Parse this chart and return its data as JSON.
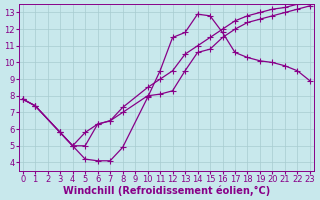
{
  "xlabel": "Windchill (Refroidissement éolien,°C)",
  "bg_color": "#c8e8ec",
  "grid_color": "#a8ccd0",
  "line_color": "#880088",
  "xlim_min": -0.3,
  "xlim_max": 23.3,
  "ylim_min": 3.5,
  "ylim_max": 13.5,
  "xticks": [
    0,
    1,
    2,
    3,
    4,
    5,
    6,
    7,
    8,
    9,
    10,
    11,
    12,
    13,
    14,
    15,
    16,
    17,
    18,
    19,
    20,
    21,
    22,
    23
  ],
  "yticks": [
    4,
    5,
    6,
    7,
    8,
    9,
    10,
    11,
    12,
    13
  ],
  "curve1_x": [
    0,
    1,
    3,
    4,
    5,
    6,
    7,
    8,
    10,
    11,
    12,
    13,
    14,
    15,
    16,
    17,
    18,
    19,
    20,
    21,
    22,
    23
  ],
  "curve1_y": [
    7.8,
    7.4,
    5.8,
    5.0,
    4.2,
    4.1,
    4.1,
    4.9,
    7.9,
    9.5,
    11.5,
    11.8,
    12.9,
    12.8,
    11.8,
    10.6,
    10.3,
    10.1,
    10.0,
    9.8,
    9.5,
    8.9
  ],
  "curve2_x": [
    0,
    1,
    3,
    4,
    5,
    6,
    7,
    8,
    10,
    11,
    12,
    13,
    14,
    15,
    16,
    17,
    18,
    19,
    20,
    21,
    22,
    23
  ],
  "curve2_y": [
    7.8,
    7.4,
    5.8,
    5.0,
    5.8,
    6.3,
    6.5,
    7.0,
    8.0,
    8.1,
    8.3,
    9.5,
    10.6,
    10.8,
    11.5,
    12.0,
    12.4,
    12.6,
    12.8,
    13.0,
    13.2,
    13.4
  ],
  "curve3_x": [
    0,
    1,
    3,
    4,
    5,
    6,
    7,
    8,
    10,
    11,
    12,
    13,
    14,
    15,
    16,
    17,
    18,
    19,
    20,
    21,
    22,
    23
  ],
  "curve3_y": [
    7.8,
    7.4,
    5.8,
    5.0,
    5.0,
    6.3,
    6.5,
    7.3,
    8.5,
    9.0,
    9.5,
    10.5,
    11.0,
    11.5,
    12.0,
    12.5,
    12.8,
    13.0,
    13.2,
    13.3,
    13.5,
    13.5
  ],
  "marker_size": 3.0,
  "linewidth": 0.9,
  "font_size": 7,
  "tick_font_size": 6
}
